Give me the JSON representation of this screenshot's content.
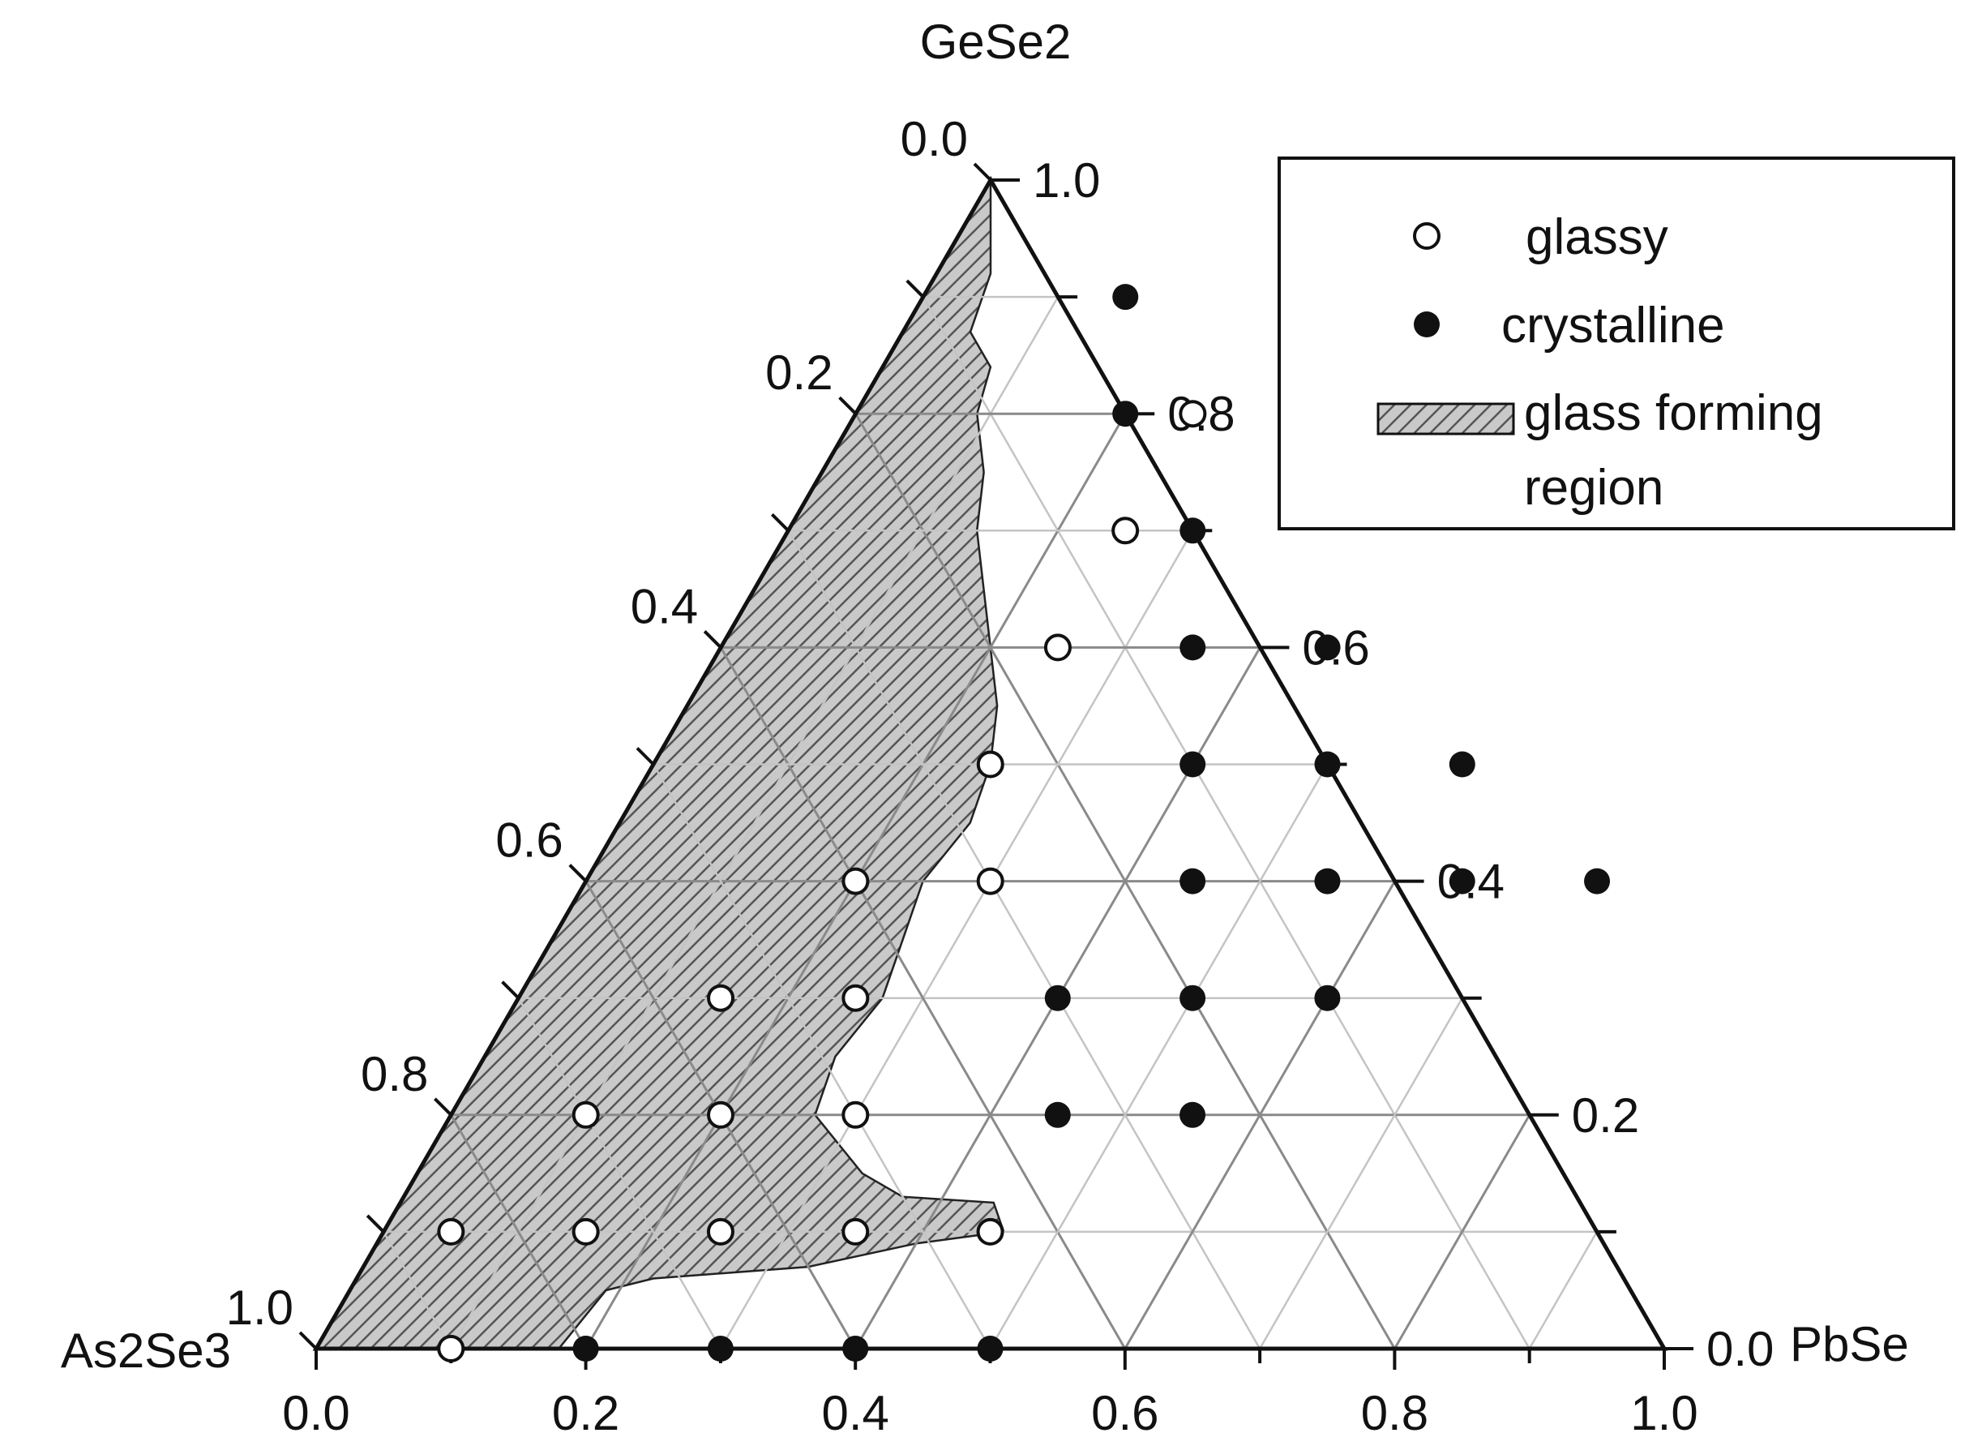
{
  "chart_data": {
    "type": "ternary-scatter",
    "vertices": {
      "top": "GeSe2",
      "left": "As2Se3",
      "right": "PbSe"
    },
    "axes": {
      "bottom_ticks": [
        "0.0",
        "0.2",
        "0.4",
        "0.6",
        "0.8",
        "1.0"
      ],
      "right_ticks": [
        "0.0",
        "0.2",
        "0.4",
        "0.6",
        "0.8",
        "1.0"
      ],
      "left_ticks": [
        "0.0",
        "0.2",
        "0.4",
        "0.6",
        "0.8",
        "1.0"
      ],
      "grid_step": 0.1,
      "grid": true
    },
    "legend": {
      "position": "top-right",
      "entries": [
        {
          "label": "glassy",
          "marker": "open-circle"
        },
        {
          "label": "crystalline",
          "marker": "filled-circle"
        },
        {
          "label": "glass forming",
          "label2": "region",
          "marker": "hatched-rect"
        }
      ]
    },
    "coordinate_note": "points given as (PbSe, GeSe2); As2Se3 = 1 - PbSe - GeSe2",
    "series": [
      {
        "name": "glassy",
        "points": [
          [
            0.1,
            0.0
          ],
          [
            0.05,
            0.1
          ],
          [
            0.15,
            0.1
          ],
          [
            0.25,
            0.1
          ],
          [
            0.35,
            0.1
          ],
          [
            0.45,
            0.1
          ],
          [
            0.1,
            0.2
          ],
          [
            0.2,
            0.2
          ],
          [
            0.3,
            0.2
          ],
          [
            0.15,
            0.3
          ],
          [
            0.25,
            0.3
          ],
          [
            0.2,
            0.4
          ],
          [
            0.3,
            0.4
          ],
          [
            0.25,
            0.5
          ],
          [
            0.25,
            0.6
          ],
          [
            0.25,
            0.7
          ],
          [
            0.25,
            0.8
          ]
        ]
      },
      {
        "name": "crystalline",
        "points": [
          [
            0.2,
            0.0
          ],
          [
            0.3,
            0.0
          ],
          [
            0.4,
            0.0
          ],
          [
            0.5,
            0.0
          ],
          [
            0.45,
            0.2
          ],
          [
            0.55,
            0.2
          ],
          [
            0.4,
            0.3
          ],
          [
            0.5,
            0.3
          ],
          [
            0.6,
            0.3
          ],
          [
            0.45,
            0.4
          ],
          [
            0.55,
            0.4
          ],
          [
            0.65,
            0.4
          ],
          [
            0.75,
            0.4
          ],
          [
            0.4,
            0.5
          ],
          [
            0.5,
            0.5
          ],
          [
            0.6,
            0.5
          ],
          [
            0.35,
            0.6
          ],
          [
            0.45,
            0.6
          ],
          [
            0.3,
            0.7
          ],
          [
            0.2,
            0.8
          ],
          [
            0.15,
            0.9
          ]
        ]
      }
    ],
    "glass_forming_region": [
      [
        0.0,
        1.0
      ],
      [
        0.04,
        0.92
      ],
      [
        0.05,
        0.87
      ],
      [
        0.08,
        0.84
      ],
      [
        0.09,
        0.8
      ],
      [
        0.12,
        0.75
      ],
      [
        0.14,
        0.7
      ],
      [
        0.17,
        0.65
      ],
      [
        0.2,
        0.6
      ],
      [
        0.23,
        0.55
      ],
      [
        0.25,
        0.5
      ],
      [
        0.26,
        0.45
      ],
      [
        0.25,
        0.4
      ],
      [
        0.26,
        0.35
      ],
      [
        0.27,
        0.3
      ],
      [
        0.26,
        0.25
      ],
      [
        0.27,
        0.2
      ],
      [
        0.33,
        0.15
      ],
      [
        0.37,
        0.13
      ],
      [
        0.44,
        0.125
      ],
      [
        0.46,
        0.1
      ],
      [
        0.4,
        0.09
      ],
      [
        0.33,
        0.07
      ],
      [
        0.22,
        0.06
      ],
      [
        0.19,
        0.05
      ],
      [
        0.18,
        0.0
      ],
      [
        0.0,
        0.0
      ]
    ]
  }
}
